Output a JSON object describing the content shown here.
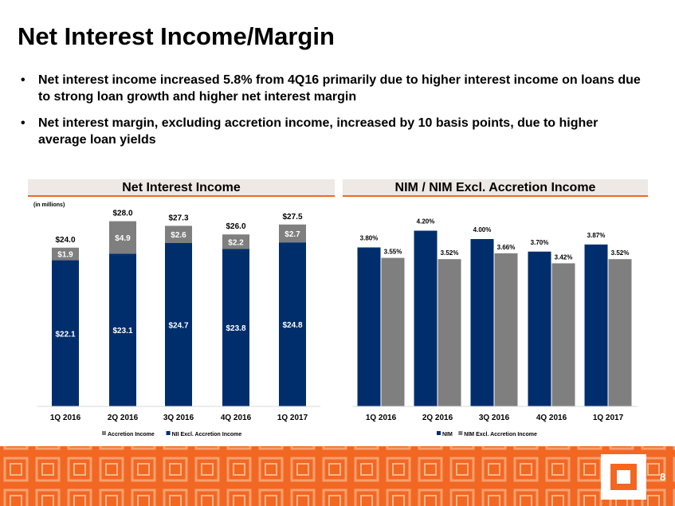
{
  "title": "Net Interest Income/Margin",
  "bullets": [
    "Net interest income increased 5.8% from 4Q16 primarily due to higher interest income on loans due to strong loan growth and higher net interest margin",
    "Net interest margin, excluding accretion income, increased by 10 basis points, due to higher average loan yields"
  ],
  "bullet_symbol": "•",
  "page_number": "8",
  "colors": {
    "accent": "#f26722",
    "navy": "#002e6d",
    "gray": "#7f7f7f",
    "header_bg": "#efe9e6"
  },
  "chart_data": [
    {
      "type": "bar",
      "stacked": true,
      "title": "Net Interest Income",
      "subtitle": "(in millions)",
      "categories": [
        "1Q 2016",
        "2Q 2016",
        "3Q 2016",
        "4Q 2016",
        "1Q 2017"
      ],
      "series": [
        {
          "name": "NII Excl. Accretion Income",
          "values": [
            22.1,
            23.1,
            24.7,
            23.8,
            24.8
          ],
          "labels": [
            "$22.1",
            "$23.1",
            "$24.7",
            "$23.8",
            "$24.8"
          ],
          "color": "#002e6d"
        },
        {
          "name": "Accretion Income",
          "values": [
            1.9,
            4.9,
            2.6,
            2.2,
            2.7
          ],
          "labels": [
            "$1.9",
            "$4.9",
            "$2.6",
            "$2.2",
            "$2.7"
          ],
          "color": "#7f7f7f"
        }
      ],
      "totals": [
        24.0,
        28.0,
        27.3,
        26.0,
        27.5
      ],
      "total_labels": [
        "$24.0",
        "$28.0",
        "$27.3",
        "$26.0",
        "$27.5"
      ],
      "legend": [
        {
          "name": "Accretion Income",
          "color": "#7f7f7f"
        },
        {
          "name": "NII Excl. Accretion Income",
          "color": "#002e6d"
        }
      ],
      "legend_position": "bottom",
      "ylim": [
        0,
        30
      ],
      "grid": false
    },
    {
      "type": "bar",
      "stacked": false,
      "title": "NIM / NIM Excl. Accretion Income",
      "categories": [
        "1Q 2016",
        "2Q 2016",
        "3Q 2016",
        "4Q 2016",
        "1Q 2017"
      ],
      "series": [
        {
          "name": "NIM",
          "values": [
            3.8,
            4.2,
            4.0,
            3.7,
            3.87
          ],
          "labels": [
            "3.80%",
            "4.20%",
            "4.00%",
            "3.70%",
            "3.87%"
          ],
          "color": "#002e6d"
        },
        {
          "name": "NIM Excl. Accretion Income",
          "values": [
            3.55,
            3.52,
            3.66,
            3.42,
            3.52
          ],
          "labels": [
            "3.55%",
            "3.52%",
            "3.66%",
            "3.42%",
            "3.52%"
          ],
          "color": "#7f7f7f"
        }
      ],
      "legend": [
        {
          "name": "NIM",
          "color": "#002e6d"
        },
        {
          "name": "NIM Excl. Accretion Income",
          "color": "#7f7f7f"
        }
      ],
      "legend_position": "bottom",
      "ylim": [
        0,
        4.5
      ],
      "grid": false
    }
  ]
}
